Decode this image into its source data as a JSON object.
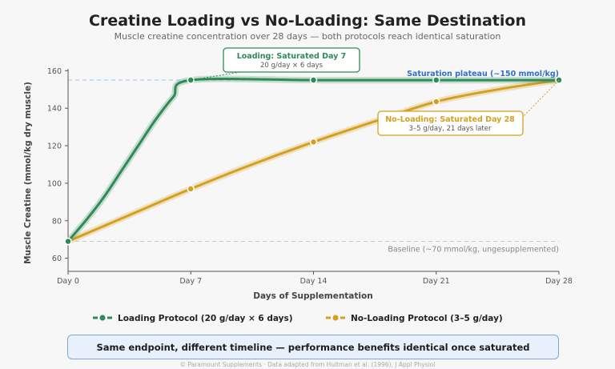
{
  "chart_data": {
    "type": "line",
    "title": "Creatine Loading vs No-Loading: Same Destination",
    "subtitle": "Muscle creatine concentration over 28 days — both protocols reach identical saturation",
    "xlabel": "Days of Supplementation",
    "ylabel": "Muscle Creatine (mmol/kg dry muscle)",
    "xlim": [
      0,
      28
    ],
    "ylim": [
      53,
      161
    ],
    "x_ticks": [
      0,
      7,
      14,
      21,
      28
    ],
    "x_tick_labels": [
      "Day 0",
      "Day 7",
      "Day 14",
      "Day 21",
      "Day 28"
    ],
    "y_ticks": [
      60,
      80,
      100,
      120,
      140,
      160
    ],
    "grid": false,
    "legend_position": "bottom",
    "series": [
      {
        "name": "Loading Protocol (20 g/day × 6 days)",
        "color": "#2e8b57",
        "x": [
          0,
          1,
          2,
          3,
          4,
          5,
          6,
          7,
          14,
          21,
          28
        ],
        "y": [
          69,
          80,
          92,
          106,
          120,
          134,
          146,
          155,
          155,
          155,
          155
        ],
        "markers_x": [
          0,
          7,
          14,
          21,
          28
        ]
      },
      {
        "name": "No-Loading Protocol (3–5 g/day)",
        "color": "#d4a020",
        "x": [
          0,
          3.5,
          7,
          10.5,
          14,
          17.5,
          21,
          24.5,
          28
        ],
        "y": [
          69,
          83,
          97,
          110,
          122,
          133,
          143.5,
          150,
          155
        ],
        "markers_x": [
          0,
          7,
          14,
          21,
          28
        ]
      }
    ],
    "reference_lines": [
      {
        "y": 155,
        "label": "Saturation plateau (~150 mmol/kg)",
        "color": "#9dc3ee"
      },
      {
        "y": 69,
        "label": "Baseline (~70 mmol/kg, ungesupplemented)",
        "color": "#c8c8c8"
      }
    ],
    "annotations": [
      {
        "title": "Loading: Saturated Day 7",
        "subtitle": "20 g/day × 6 days",
        "point": [
          7,
          155
        ],
        "color": "#2e8b57"
      },
      {
        "title": "No-Loading: Saturated Day 28",
        "subtitle": "3–5 g/day, 21 days later",
        "point": [
          28,
          155
        ],
        "color": "#d4a020"
      }
    ]
  },
  "banner": "Same endpoint, different timeline — performance benefits identical once saturated",
  "footer": "© Paramount Supplements · Data adapted from Hultman et al. (1996), J Appl Physiol"
}
